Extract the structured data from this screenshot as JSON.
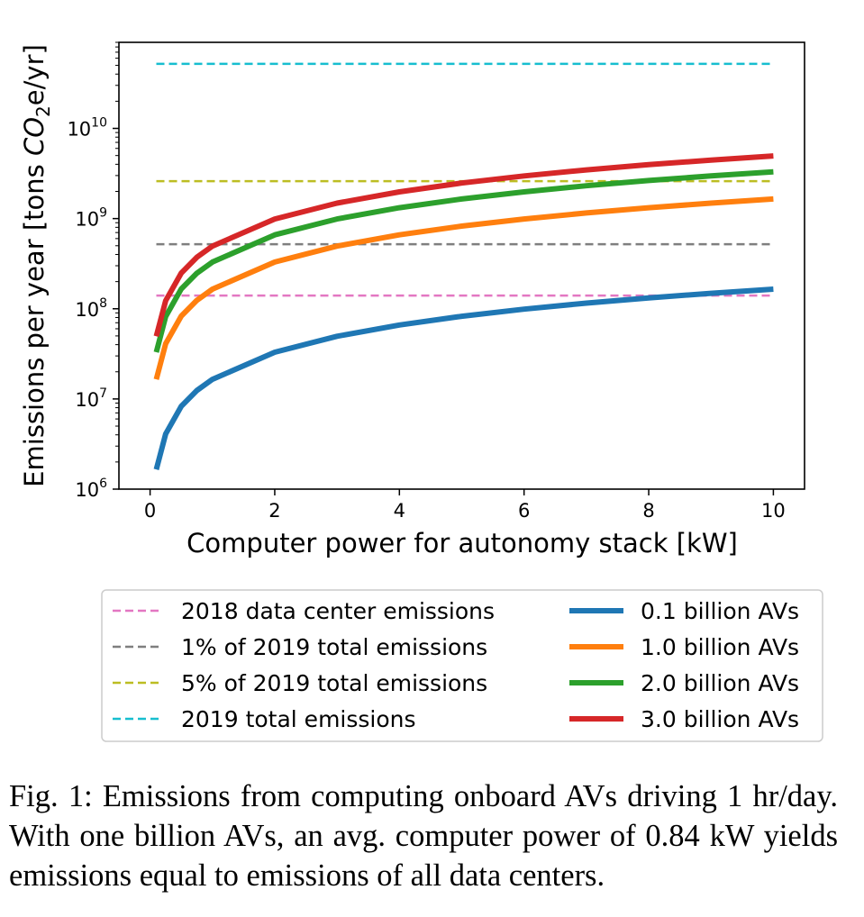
{
  "chart_data": {
    "type": "line",
    "xlabel": "Computer power for autonomy stack [kW]",
    "ylabel_prefix": "Emissions per year [tons ",
    "ylabel_italic": "CO",
    "ylabel_sub": "2",
    "ylabel_suffix": "e/yr]",
    "xlim": [
      -0.5,
      10.5
    ],
    "ylim": [
      1000000,
      90000000000
    ],
    "yscale": "log",
    "xticks": [
      0,
      2,
      4,
      6,
      8,
      10
    ],
    "xtick_labels": [
      "0",
      "2",
      "4",
      "6",
      "8",
      "10"
    ],
    "yticks": [
      {
        "value": 1000000,
        "base": "10",
        "exp": "6"
      },
      {
        "value": 10000000,
        "base": "10",
        "exp": "7"
      },
      {
        "value": 100000000,
        "base": "10",
        "exp": "8"
      },
      {
        "value": 1000000000,
        "base": "10",
        "exp": "9"
      },
      {
        "value": 10000000000,
        "base": "10",
        "exp": "10"
      }
    ],
    "grid": false,
    "x": [
      0.1,
      0.25,
      0.5,
      0.75,
      1,
      2,
      3,
      4,
      5,
      6,
      7,
      8,
      9,
      10
    ],
    "series": [
      {
        "name": "0.1 billion AVs",
        "color": "#1f77b4",
        "values": [
          1650000,
          4100000,
          8300000,
          12400000,
          16500000,
          33000000,
          49500000,
          66000000,
          82500000,
          99000000,
          115500000,
          132000000,
          148500000,
          165000000
        ]
      },
      {
        "name": "1.0 billion AVs",
        "color": "#ff7f0e",
        "values": [
          16500000,
          41000000,
          83000000,
          124000000,
          165000000,
          330000000,
          495000000,
          660000000,
          825000000,
          990000000,
          1155000000,
          1320000000,
          1485000000,
          1650000000
        ]
      },
      {
        "name": "2.0 billion AVs",
        "color": "#2ca02c",
        "values": [
          33000000,
          82000000,
          166000000,
          248000000,
          330000000,
          660000000,
          990000000,
          1320000000,
          1650000000,
          1980000000,
          2310000000,
          2640000000,
          2970000000,
          3300000000
        ]
      },
      {
        "name": "3.0 billion AVs",
        "color": "#d62728",
        "values": [
          49500000,
          123000000,
          249000000,
          372000000,
          495000000,
          990000000,
          1485000000,
          1980000000,
          2475000000,
          2970000000,
          3465000000,
          3960000000,
          4455000000,
          4950000000
        ]
      }
    ],
    "reference_lines": [
      {
        "name": "2018 data center emissions",
        "color": "#e377c2",
        "value": 140000000
      },
      {
        "name": "1% of 2019 total emissions",
        "color": "#7f7f7f",
        "value": 520000000
      },
      {
        "name": "5% of 2019 total emissions",
        "color": "#bcbd22",
        "value": 2600000000
      },
      {
        "name": "2019 total emissions",
        "color": "#17becf",
        "value": 52000000000
      }
    ],
    "legend": "below"
  },
  "caption": "Fig. 1: Emissions from computing onboard AVs driving 1 hr/day. With one billion AVs, an avg. computer power of 0.84 kW yields emissions equal to emissions of all data centers."
}
